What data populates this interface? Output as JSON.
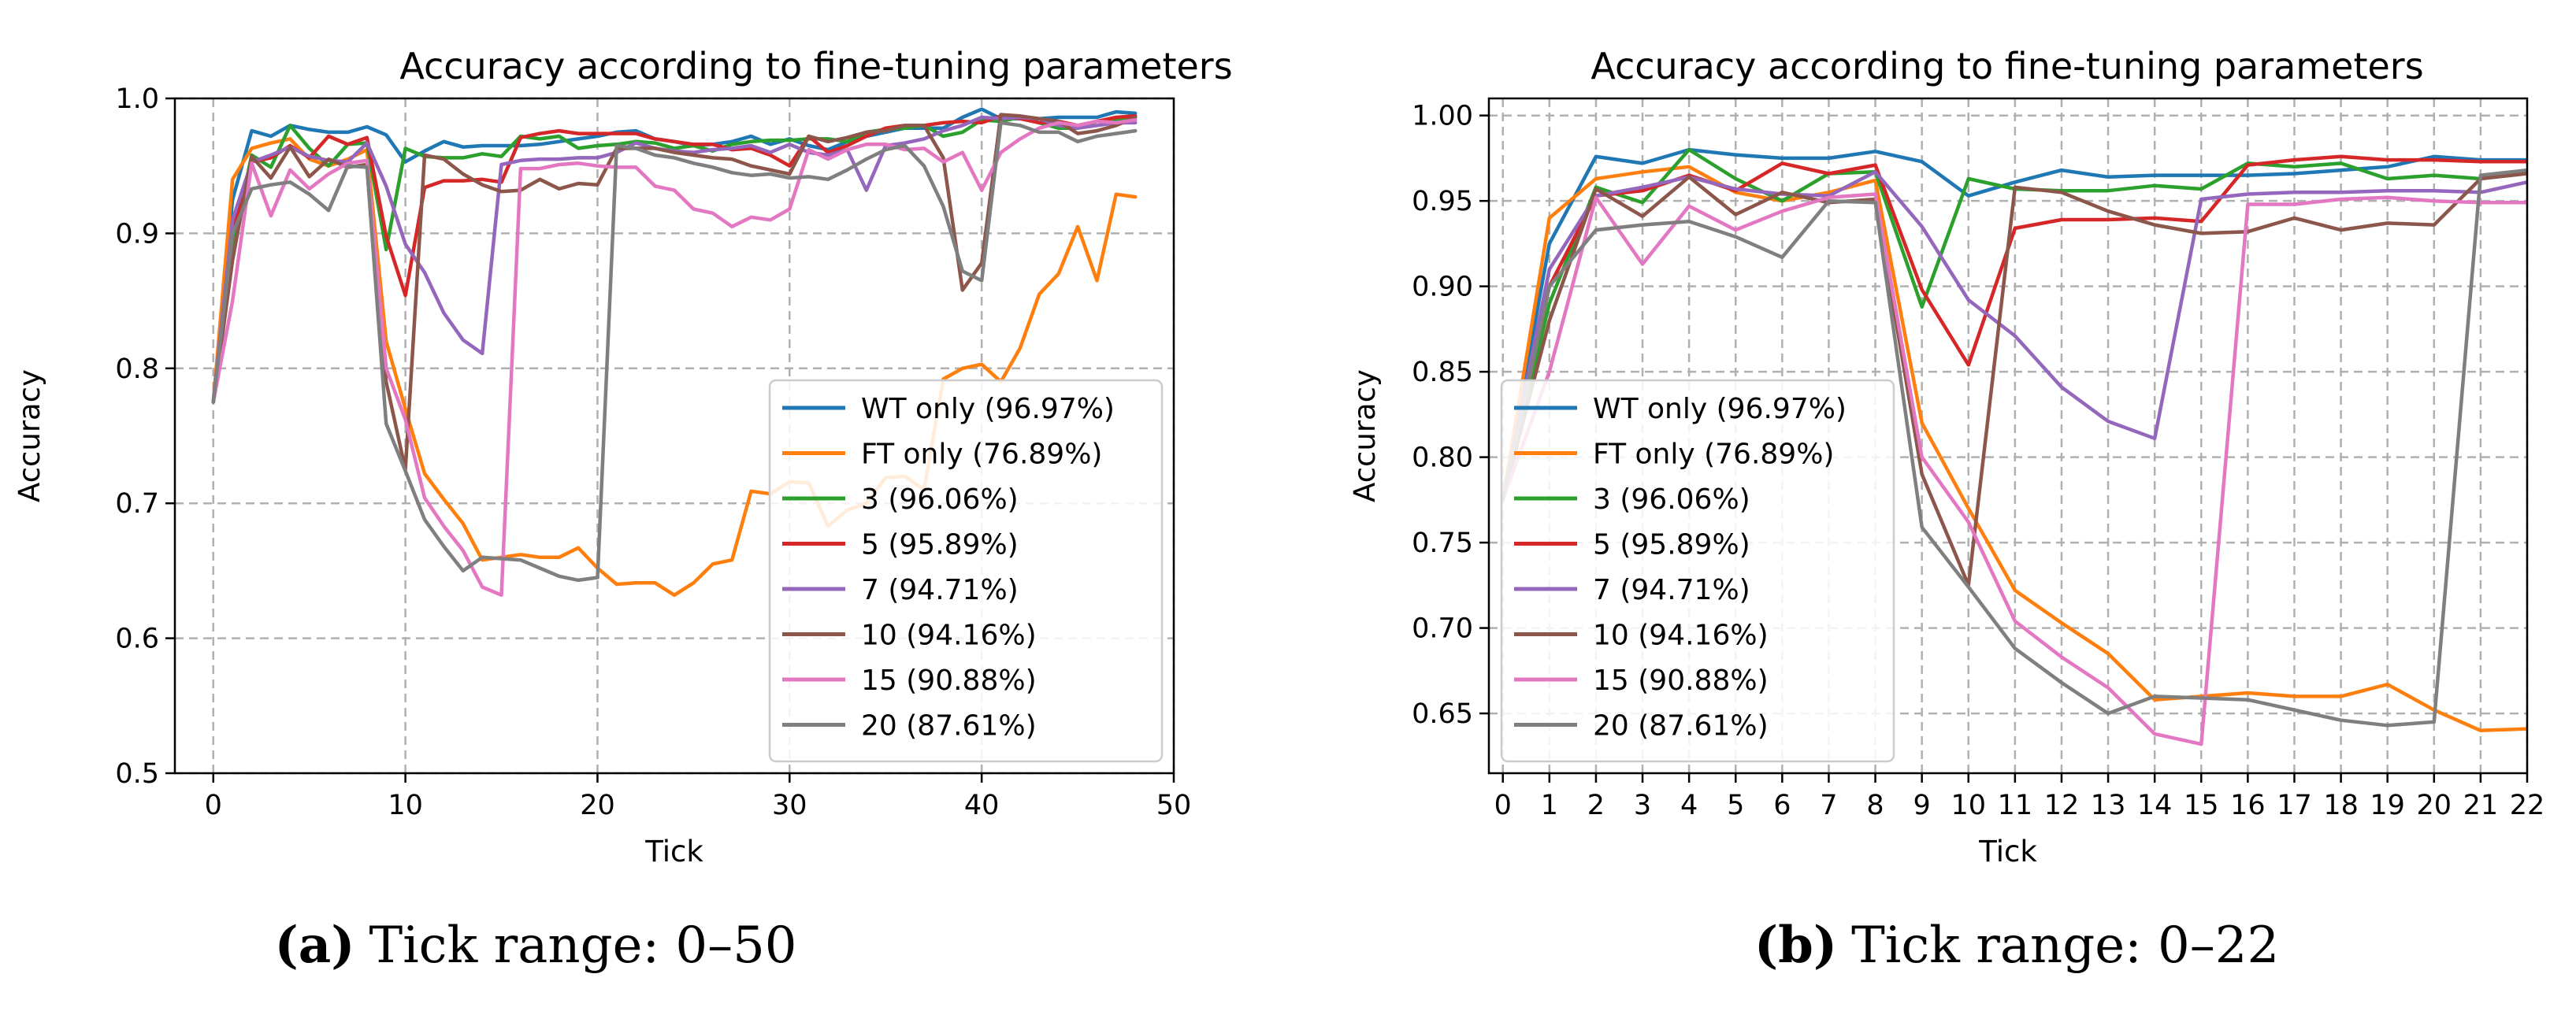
{
  "chart_data": [
    {
      "type": "line",
      "title": "Accuracy according to fine-tuning parameters",
      "xlabel": "Tick",
      "ylabel": "Accuracy",
      "xlim": [
        -2,
        50
      ],
      "ylim": [
        0.5,
        1.0
      ],
      "xticks": [
        0,
        10,
        20,
        30,
        40,
        50
      ],
      "yticks": [
        0.5,
        0.6,
        0.7,
        0.8,
        0.9,
        1.0
      ],
      "ytick_format": "1",
      "grid": true,
      "legend_position": "lower-right",
      "caption_label": "(a)",
      "caption_text": "Tick range: 0–50",
      "x": [
        0,
        1,
        2,
        3,
        4,
        5,
        6,
        7,
        8,
        9,
        10,
        11,
        12,
        13,
        14,
        15,
        16,
        17,
        18,
        19,
        20,
        21,
        22,
        23,
        24,
        25,
        26,
        27,
        28,
        29,
        30,
        31,
        32,
        33,
        34,
        35,
        36,
        37,
        38,
        39,
        40,
        41,
        42,
        43,
        44,
        45,
        46,
        47,
        48
      ],
      "series": [
        {
          "name": "WT only (96.97%)",
          "color": "#1f77b4",
          "values": [
            0.775,
            0.925,
            0.976,
            0.972,
            0.98,
            0.977,
            0.975,
            0.975,
            0.979,
            0.973,
            0.953,
            0.961,
            0.968,
            0.964,
            0.965,
            0.965,
            0.965,
            0.966,
            0.968,
            0.97,
            0.972,
            0.975,
            0.976,
            0.97,
            0.968,
            0.965,
            0.966,
            0.968,
            0.972,
            0.966,
            0.97,
            0.965,
            0.962,
            0.968,
            0.972,
            0.975,
            0.978,
            0.978,
            0.978,
            0.986,
            0.992,
            0.985,
            0.985,
            0.985,
            0.986,
            0.986,
            0.986,
            0.99,
            0.989
          ]
        },
        {
          "name": "FT only (76.89%)",
          "color": "#ff7f0e",
          "values": [
            0.775,
            0.94,
            0.963,
            0.967,
            0.97,
            0.955,
            0.95,
            0.955,
            0.962,
            0.82,
            0.77,
            0.722,
            0.703,
            0.685,
            0.658,
            0.66,
            0.662,
            0.66,
            0.66,
            0.667,
            0.652,
            0.64,
            0.641,
            0.641,
            0.632,
            0.641,
            0.655,
            0.658,
            0.709,
            0.707,
            0.716,
            0.715,
            0.683,
            0.695,
            0.7,
            0.719,
            0.72,
            0.71,
            0.792,
            0.8,
            0.803,
            0.79,
            0.815,
            0.855,
            0.87,
            0.905,
            0.865,
            0.929,
            0.927
          ]
        },
        {
          "name": "3 (96.06%)",
          "color": "#2ca02c",
          "values": [
            0.775,
            0.89,
            0.958,
            0.949,
            0.98,
            0.963,
            0.95,
            0.966,
            0.967,
            0.888,
            0.963,
            0.957,
            0.956,
            0.956,
            0.959,
            0.957,
            0.972,
            0.97,
            0.972,
            0.963,
            0.965,
            0.966,
            0.968,
            0.967,
            0.963,
            0.965,
            0.961,
            0.966,
            0.968,
            0.969,
            0.969,
            0.97,
            0.97,
            0.968,
            0.975,
            0.977,
            0.978,
            0.98,
            0.972,
            0.975,
            0.984,
            0.983,
            0.986,
            0.982,
            0.978,
            0.978,
            0.983,
            0.984,
            0.986
          ]
        },
        {
          "name": "5 (95.89%)",
          "color": "#d62728",
          "values": [
            0.775,
            0.9,
            0.953,
            0.956,
            0.965,
            0.956,
            0.972,
            0.966,
            0.971,
            0.898,
            0.854,
            0.934,
            0.939,
            0.939,
            0.94,
            0.938,
            0.971,
            0.974,
            0.976,
            0.974,
            0.974,
            0.974,
            0.974,
            0.97,
            0.968,
            0.966,
            0.966,
            0.962,
            0.963,
            0.958,
            0.95,
            0.972,
            0.96,
            0.965,
            0.972,
            0.978,
            0.98,
            0.98,
            0.982,
            0.983,
            0.982,
            0.987,
            0.985,
            0.982,
            0.983,
            0.98,
            0.983,
            0.986,
            0.987
          ]
        },
        {
          "name": "7 (94.71%)",
          "color": "#9467bd",
          "values": [
            0.775,
            0.91,
            0.953,
            0.958,
            0.964,
            0.957,
            0.954,
            0.953,
            0.967,
            0.935,
            0.892,
            0.871,
            0.841,
            0.821,
            0.811,
            0.951,
            0.954,
            0.955,
            0.955,
            0.956,
            0.956,
            0.96,
            0.967,
            0.963,
            0.961,
            0.96,
            0.962,
            0.963,
            0.965,
            0.96,
            0.966,
            0.96,
            0.958,
            0.962,
            0.932,
            0.965,
            0.967,
            0.97,
            0.976,
            0.98,
            0.986,
            0.985,
            0.986,
            0.985,
            0.98,
            0.978,
            0.98,
            0.982,
            0.982
          ]
        },
        {
          "name": "10 (94.16%)",
          "color": "#8c564b",
          "values": [
            0.775,
            0.88,
            0.957,
            0.941,
            0.964,
            0.942,
            0.955,
            0.949,
            0.951,
            0.79,
            0.725,
            0.958,
            0.955,
            0.944,
            0.936,
            0.931,
            0.932,
            0.94,
            0.933,
            0.937,
            0.936,
            0.963,
            0.963,
            0.963,
            0.96,
            0.958,
            0.956,
            0.955,
            0.95,
            0.947,
            0.944,
            0.972,
            0.968,
            0.971,
            0.975,
            0.976,
            0.98,
            0.98,
            0.956,
            0.858,
            0.878,
            0.988,
            0.987,
            0.985,
            0.983,
            0.974,
            0.976,
            0.98,
            0.986
          ]
        },
        {
          "name": "15 (90.88%)",
          "color": "#e377c2",
          "values": [
            0.775,
            0.85,
            0.952,
            0.913,
            0.947,
            0.933,
            0.944,
            0.952,
            0.954,
            0.8,
            0.762,
            0.704,
            0.683,
            0.665,
            0.638,
            0.632,
            0.948,
            0.948,
            0.951,
            0.952,
            0.95,
            0.949,
            0.949,
            0.935,
            0.932,
            0.918,
            0.915,
            0.905,
            0.912,
            0.91,
            0.918,
            0.962,
            0.955,
            0.962,
            0.966,
            0.966,
            0.962,
            0.963,
            0.953,
            0.96,
            0.932,
            0.96,
            0.97,
            0.978,
            0.982,
            0.98,
            0.983,
            0.982,
            0.984
          ]
        },
        {
          "name": "20 (87.61%)",
          "color": "#7f7f7f",
          "values": [
            0.775,
            0.9,
            0.933,
            0.936,
            0.938,
            0.929,
            0.917,
            0.95,
            0.949,
            0.759,
            0.724,
            0.688,
            0.668,
            0.65,
            0.66,
            0.659,
            0.658,
            0.652,
            0.646,
            0.643,
            0.645,
            0.965,
            0.963,
            0.958,
            0.956,
            0.952,
            0.949,
            0.945,
            0.943,
            0.944,
            0.941,
            0.942,
            0.94,
            0.947,
            0.955,
            0.962,
            0.965,
            0.95,
            0.92,
            0.872,
            0.865,
            0.982,
            0.98,
            0.975,
            0.975,
            0.968,
            0.972,
            0.974,
            0.976
          ]
        }
      ]
    },
    {
      "type": "line",
      "title": "Accuracy according to fine-tuning parameters",
      "xlabel": "Tick",
      "ylabel": "Accuracy",
      "xlim": [
        -0.3,
        22
      ],
      "ylim": [
        0.615,
        1.01
      ],
      "xticks": [
        0,
        1,
        2,
        3,
        4,
        5,
        6,
        7,
        8,
        9,
        10,
        11,
        12,
        13,
        14,
        15,
        16,
        17,
        18,
        19,
        20,
        21,
        22
      ],
      "yticks": [
        0.65,
        0.7,
        0.75,
        0.8,
        0.85,
        0.9,
        0.95,
        1.0
      ],
      "ytick_format": "2",
      "grid": true,
      "legend_position": "lower-left",
      "caption_label": "(b)",
      "caption_text": "Tick range: 0–22",
      "x": [
        0,
        1,
        2,
        3,
        4,
        5,
        6,
        7,
        8,
        9,
        10,
        11,
        12,
        13,
        14,
        15,
        16,
        17,
        18,
        19,
        20,
        21,
        22
      ],
      "series": [
        {
          "name": "WT only (96.97%)",
          "color": "#1f77b4",
          "values": [
            0.775,
            0.925,
            0.976,
            0.972,
            0.98,
            0.977,
            0.975,
            0.975,
            0.979,
            0.973,
            0.953,
            0.961,
            0.968,
            0.964,
            0.965,
            0.965,
            0.965,
            0.966,
            0.968,
            0.97,
            0.976,
            0.974,
            0.974
          ]
        },
        {
          "name": "FT only (76.89%)",
          "color": "#ff7f0e",
          "values": [
            0.775,
            0.94,
            0.963,
            0.967,
            0.97,
            0.955,
            0.95,
            0.955,
            0.962,
            0.82,
            0.77,
            0.722,
            0.703,
            0.685,
            0.658,
            0.66,
            0.662,
            0.66,
            0.66,
            0.667,
            0.652,
            0.64,
            0.641
          ]
        },
        {
          "name": "3 (96.06%)",
          "color": "#2ca02c",
          "values": [
            0.775,
            0.89,
            0.958,
            0.949,
            0.98,
            0.963,
            0.95,
            0.966,
            0.967,
            0.888,
            0.963,
            0.957,
            0.956,
            0.956,
            0.959,
            0.957,
            0.972,
            0.97,
            0.972,
            0.963,
            0.965,
            0.963,
            0.967
          ]
        },
        {
          "name": "5 (95.89%)",
          "color": "#d62728",
          "values": [
            0.775,
            0.9,
            0.953,
            0.956,
            0.965,
            0.956,
            0.972,
            0.966,
            0.971,
            0.898,
            0.854,
            0.934,
            0.939,
            0.939,
            0.94,
            0.938,
            0.971,
            0.974,
            0.976,
            0.974,
            0.974,
            0.973,
            0.973
          ]
        },
        {
          "name": "7 (94.71%)",
          "color": "#9467bd",
          "values": [
            0.775,
            0.91,
            0.953,
            0.958,
            0.964,
            0.957,
            0.954,
            0.953,
            0.967,
            0.935,
            0.892,
            0.871,
            0.841,
            0.821,
            0.811,
            0.951,
            0.954,
            0.955,
            0.955,
            0.956,
            0.956,
            0.955,
            0.961
          ]
        },
        {
          "name": "10 (94.16%)",
          "color": "#8c564b",
          "values": [
            0.775,
            0.88,
            0.957,
            0.941,
            0.964,
            0.942,
            0.955,
            0.949,
            0.951,
            0.79,
            0.725,
            0.958,
            0.955,
            0.944,
            0.936,
            0.931,
            0.932,
            0.94,
            0.933,
            0.937,
            0.936,
            0.963,
            0.966
          ]
        },
        {
          "name": "15 (90.88%)",
          "color": "#e377c2",
          "values": [
            0.775,
            0.85,
            0.952,
            0.913,
            0.947,
            0.933,
            0.944,
            0.952,
            0.954,
            0.8,
            0.762,
            0.704,
            0.683,
            0.665,
            0.638,
            0.632,
            0.948,
            0.948,
            0.951,
            0.952,
            0.95,
            0.949,
            0.949
          ]
        },
        {
          "name": "20 (87.61%)",
          "color": "#7f7f7f",
          "values": [
            0.775,
            0.9,
            0.933,
            0.936,
            0.938,
            0.929,
            0.917,
            0.95,
            0.949,
            0.759,
            0.724,
            0.688,
            0.668,
            0.65,
            0.66,
            0.659,
            0.658,
            0.652,
            0.646,
            0.643,
            0.645,
            0.965,
            0.968
          ]
        }
      ]
    }
  ]
}
